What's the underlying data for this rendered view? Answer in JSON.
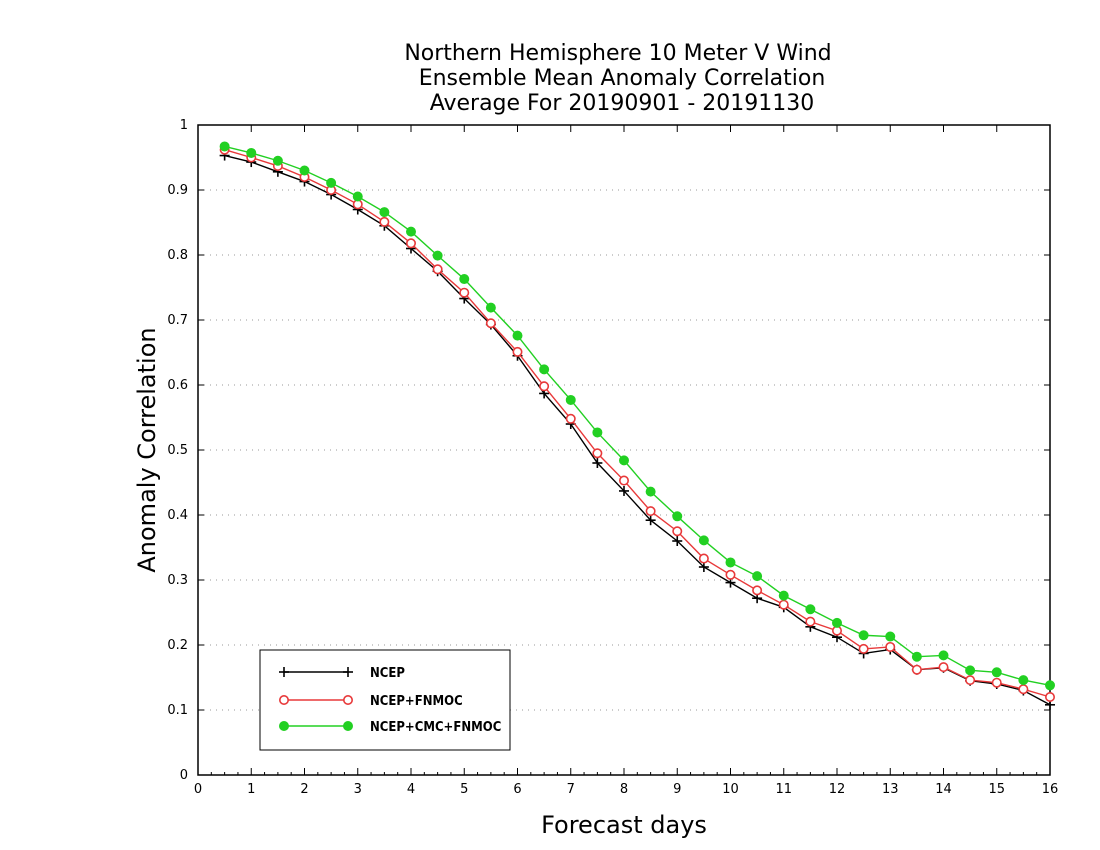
{
  "chart_data": {
    "type": "line",
    "title_lines": [
      "Northern Hemisphere 10 Meter V Wind",
      "Ensemble Mean Anomaly Correlation",
      "Average For 20190901 - 20191130"
    ],
    "xlabel": "Forecast days",
    "ylabel": "Anomaly Correlation",
    "xlim": [
      0,
      16
    ],
    "ylim": [
      0,
      1
    ],
    "xticks": [
      0,
      1,
      2,
      3,
      4,
      5,
      6,
      7,
      8,
      9,
      10,
      11,
      12,
      13,
      14,
      15,
      16
    ],
    "yticks": [
      0,
      0.1,
      0.2,
      0.3,
      0.4,
      0.5,
      0.6,
      0.7,
      0.8,
      0.9,
      1
    ],
    "ytick_labels": [
      "0",
      "0.1",
      "0.2",
      "0.3",
      "0.4",
      "0.5",
      "0.6",
      "0.7",
      "0.8",
      "0.9",
      "1"
    ],
    "grid": true,
    "legend_position": "bottom-left",
    "x": [
      0.5,
      1.0,
      1.5,
      2.0,
      2.5,
      3.0,
      3.5,
      4.0,
      4.5,
      5.0,
      5.5,
      6.0,
      6.5,
      7.0,
      7.5,
      8.0,
      8.5,
      9.0,
      9.5,
      10.0,
      10.5,
      11.0,
      11.5,
      12.0,
      12.5,
      13.0,
      13.5,
      14.0,
      14.5,
      15.0,
      15.5,
      16.0
    ],
    "series": [
      {
        "name": "NCEP",
        "color": "#000000",
        "marker": "plus",
        "values": [
          0.953,
          0.943,
          0.928,
          0.913,
          0.893,
          0.87,
          0.845,
          0.81,
          0.775,
          0.733,
          0.693,
          0.645,
          0.587,
          0.54,
          0.48,
          0.437,
          0.392,
          0.36,
          0.32,
          0.296,
          0.272,
          0.258,
          0.228,
          0.212,
          0.187,
          0.193,
          0.162,
          0.165,
          0.145,
          0.14,
          0.13,
          0.108
        ]
      },
      {
        "name": "NCEP+FNMOC",
        "color": "#e8393a",
        "marker": "open-circle",
        "values": [
          0.962,
          0.95,
          0.937,
          0.92,
          0.9,
          0.878,
          0.851,
          0.818,
          0.778,
          0.742,
          0.695,
          0.651,
          0.598,
          0.548,
          0.495,
          0.453,
          0.406,
          0.375,
          0.333,
          0.308,
          0.284,
          0.262,
          0.236,
          0.222,
          0.194,
          0.197,
          0.162,
          0.166,
          0.146,
          0.142,
          0.132,
          0.12
        ]
      },
      {
        "name": "NCEP+CMC+FNMOC",
        "color": "#22d022",
        "marker": "filled-circle",
        "values": [
          0.967,
          0.957,
          0.945,
          0.93,
          0.911,
          0.89,
          0.866,
          0.836,
          0.799,
          0.763,
          0.719,
          0.676,
          0.624,
          0.577,
          0.527,
          0.484,
          0.436,
          0.398,
          0.361,
          0.327,
          0.306,
          0.276,
          0.255,
          0.234,
          0.215,
          0.213,
          0.182,
          0.184,
          0.161,
          0.158,
          0.146,
          0.138
        ]
      }
    ]
  }
}
